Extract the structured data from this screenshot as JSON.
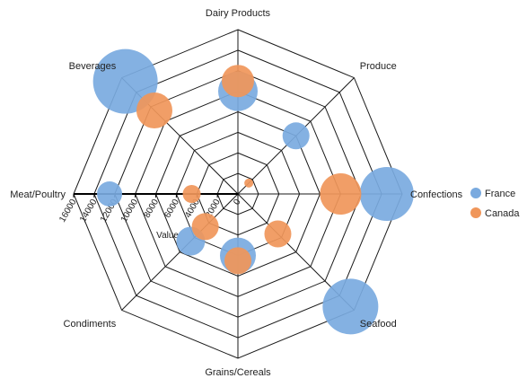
{
  "chart_data": {
    "type": "radar-bubble",
    "categories": [
      "Dairy Products",
      "Produce",
      "Confections",
      "Seafood",
      "Grains/Cereals",
      "Condiments",
      "Meat/Poultry",
      "Beverages"
    ],
    "value_axis": {
      "title": "Value",
      "min": 0,
      "max": 16000,
      "step": 2000,
      "ticks": [
        "0",
        "2000",
        "4000",
        "6000",
        "8000",
        "10000",
        "12000",
        "14000",
        "16000"
      ]
    },
    "legend": {
      "position": "right"
    },
    "series": [
      {
        "name": "France",
        "color": "#7aaadf",
        "points": [
          {
            "category": "Dairy Products",
            "value": 10000,
            "size": 22
          },
          {
            "category": "Produce",
            "value": 8000,
            "size": 15
          },
          {
            "category": "Confections",
            "value": 14500,
            "size": 30
          },
          {
            "category": "Seafood",
            "value": 15500,
            "size": 31
          },
          {
            "category": "Grains/Cereals",
            "value": 6000,
            "size": 20
          },
          {
            "category": "Condiments",
            "value": 6500,
            "size": 16
          },
          {
            "category": "Meat/Poultry",
            "value": 12500,
            "size": 14
          },
          {
            "category": "Beverages",
            "value": 15500,
            "size": 36
          }
        ]
      },
      {
        "name": "Canada",
        "color": "#f0965a",
        "points": [
          {
            "category": "Dairy Products",
            "value": 11000,
            "size": 18
          },
          {
            "category": "Produce",
            "value": 1500,
            "size": 5
          },
          {
            "category": "Confections",
            "value": 10000,
            "size": 23
          },
          {
            "category": "Seafood",
            "value": 5500,
            "size": 15
          },
          {
            "category": "Grains/Cereals",
            "value": 6500,
            "size": 15
          },
          {
            "category": "Condiments",
            "value": 4500,
            "size": 15
          },
          {
            "category": "Meat/Poultry",
            "value": 4500,
            "size": 10
          },
          {
            "category": "Beverages",
            "value": 11500,
            "size": 20
          }
        ]
      }
    ]
  }
}
